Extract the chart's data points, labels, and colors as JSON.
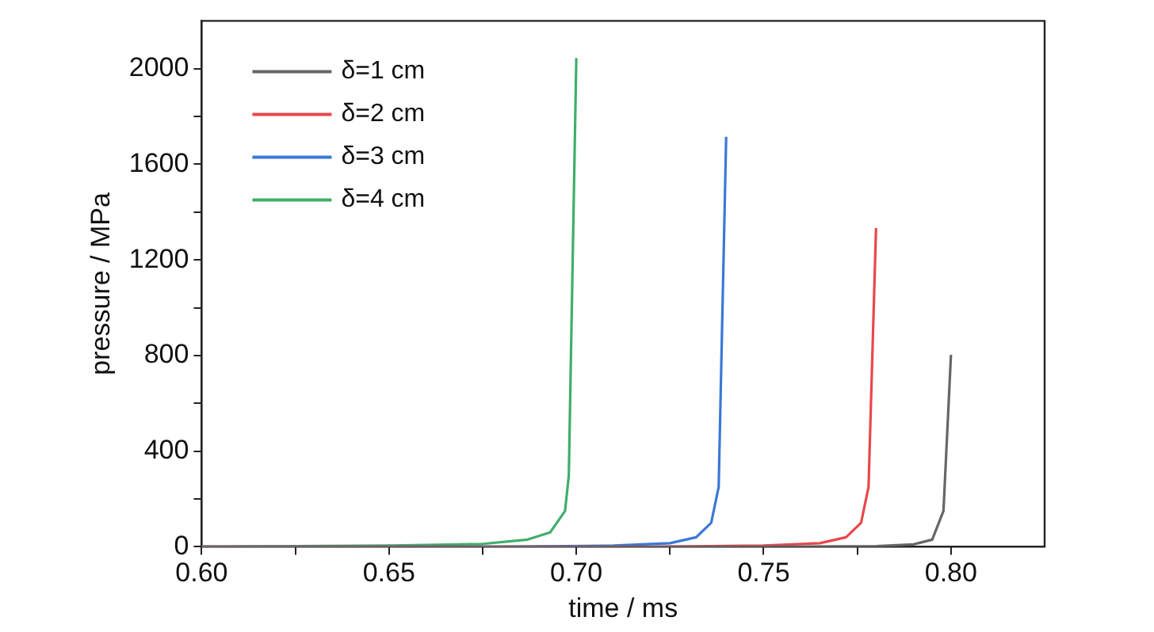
{
  "chart_data": {
    "type": "line",
    "xlabel": "time / ms",
    "ylabel": "pressure / MPa",
    "xlim": [
      0.6,
      0.825
    ],
    "xticks": [
      {
        "value": 0.6,
        "label": "0.60"
      },
      {
        "value": 0.625,
        "label": null
      },
      {
        "value": 0.65,
        "label": "0.65"
      },
      {
        "value": 0.675,
        "label": null
      },
      {
        "value": 0.7,
        "label": "0.70"
      },
      {
        "value": 0.725,
        "label": null
      },
      {
        "value": 0.75,
        "label": "0.75"
      },
      {
        "value": 0.775,
        "label": null
      },
      {
        "value": 0.8,
        "label": "0.80"
      }
    ],
    "ylim": [
      0,
      2200
    ],
    "yticks": [
      0,
      {
        "value": 200,
        "label": null
      },
      400,
      {
        "value": 600,
        "label": null
      },
      800,
      {
        "value": 1000,
        "label": null
      },
      1200,
      {
        "value": 1400,
        "label": null
      },
      1600,
      {
        "value": 1800,
        "label": null
      },
      2000
    ],
    "grid": false,
    "legend": "top left",
    "marker": "none",
    "line_style": "solid",
    "series": [
      {
        "name": "δ=1 cm",
        "color": "#666666",
        "x": [
          0.6,
          0.75,
          0.78,
          0.79,
          0.795,
          0.798,
          0.8
        ],
        "values": [
          0,
          0,
          3,
          10,
          30,
          150,
          803
        ]
      },
      {
        "name": "δ=2 cm",
        "color": "#e8474b",
        "x": [
          0.6,
          0.72,
          0.75,
          0.765,
          0.772,
          0.776,
          0.778,
          0.78
        ],
        "values": [
          0,
          0,
          5,
          15,
          40,
          100,
          250,
          1333
        ]
      },
      {
        "name": "δ=3 cm",
        "color": "#3a78d6",
        "x": [
          0.6,
          0.68,
          0.71,
          0.725,
          0.732,
          0.736,
          0.738,
          0.74
        ],
        "values": [
          0,
          0,
          5,
          15,
          40,
          100,
          250,
          1715
        ]
      },
      {
        "name": "δ=4 cm",
        "color": "#3fae6a",
        "x": [
          0.6,
          0.65,
          0.675,
          0.687,
          0.693,
          0.697,
          0.698,
          0.7
        ],
        "values": [
          0,
          5,
          12,
          30,
          60,
          150,
          300,
          2045
        ]
      }
    ]
  }
}
